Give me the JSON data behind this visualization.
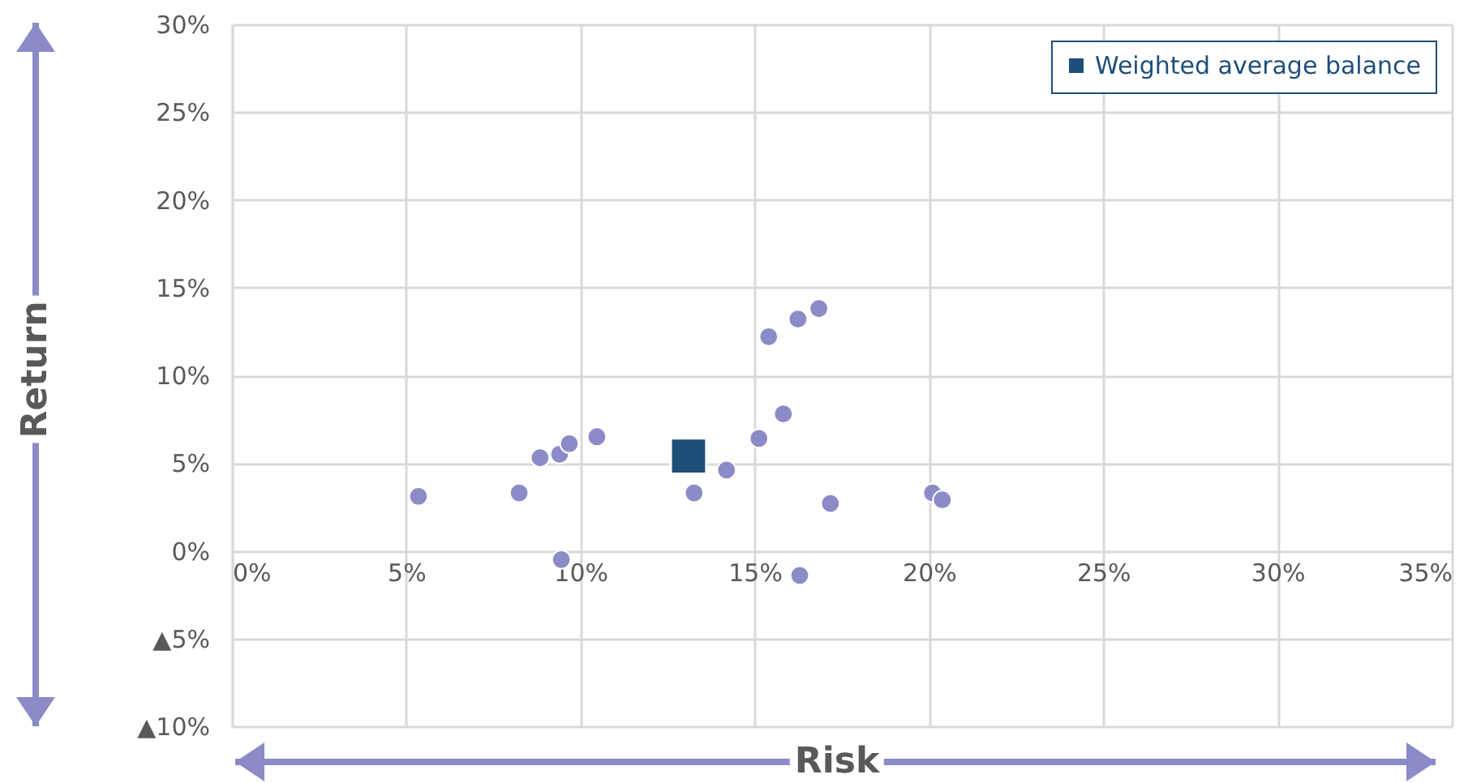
{
  "chart_data": {
    "type": "scatter",
    "xlabel": "Risk",
    "ylabel": "Return",
    "xlim": [
      0,
      35
    ],
    "ylim": [
      -10,
      30
    ],
    "xticks": [
      {
        "value": 0,
        "label": "0%"
      },
      {
        "value": 5,
        "label": "5%"
      },
      {
        "value": 10,
        "label": "10%"
      },
      {
        "value": 15,
        "label": "15%"
      },
      {
        "value": 20,
        "label": "20%"
      },
      {
        "value": 25,
        "label": "25%"
      },
      {
        "value": 30,
        "label": "30%"
      },
      {
        "value": 35,
        "label": "35%"
      }
    ],
    "yticks": [
      {
        "value": 30,
        "label": "30%"
      },
      {
        "value": 25,
        "label": "25%"
      },
      {
        "value": 20,
        "label": "20%"
      },
      {
        "value": 15,
        "label": "15%"
      },
      {
        "value": 10,
        "label": "10%"
      },
      {
        "value": 5,
        "label": "5%"
      },
      {
        "value": 0,
        "label": "0%"
      },
      {
        "value": -5,
        "label": "▲5%"
      },
      {
        "value": -10,
        "label": "▲10%"
      }
    ],
    "series": [
      {
        "color": "#8b8bc8",
        "marker": "circle",
        "x": [
          5.35,
          8.24,
          8.84,
          9.4,
          9.68,
          10.47,
          9.45,
          13.26,
          14.19,
          15.12,
          15.82,
          15.4,
          16.24,
          16.84,
          16.29,
          17.17,
          20.1,
          20.38
        ],
        "values": [
          3.1,
          3.3,
          5.3,
          5.5,
          6.1,
          6.5,
          -0.5,
          3.3,
          4.6,
          6.4,
          7.8,
          12.2,
          13.2,
          13.8,
          -1.4,
          2.7,
          3.3,
          2.9
        ]
      },
      {
        "name": "Weighted average balance",
        "color": "#1f4e79",
        "marker": "square",
        "x": [
          13.1
        ],
        "values": [
          5.4
        ]
      }
    ],
    "grid": true,
    "legend": "top right"
  }
}
